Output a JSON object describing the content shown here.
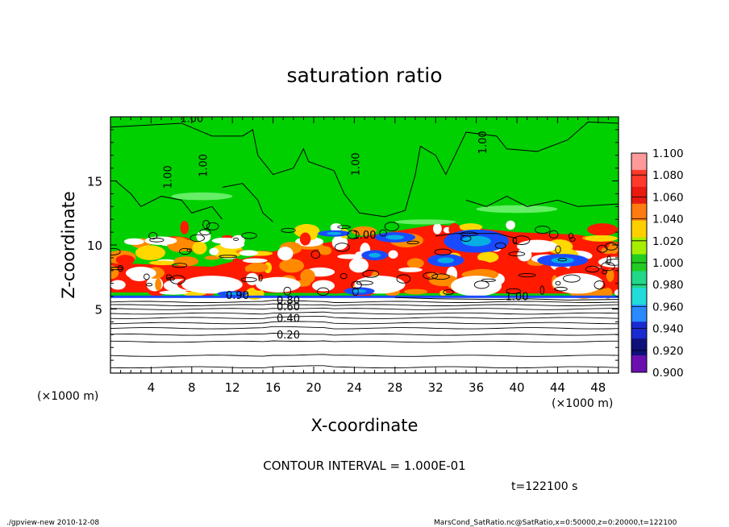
{
  "chart_data": {
    "type": "heatmap",
    "title": "saturation ratio",
    "xlabel": "X-coordinate",
    "ylabel": "Z-coordinate",
    "x_unit": "(×1000 m)",
    "y_unit": "(×1000 m)",
    "xlim": [
      0,
      50
    ],
    "ylim": [
      0,
      20
    ],
    "x_ticks": [
      4,
      8,
      12,
      16,
      20,
      24,
      28,
      32,
      36,
      40,
      44,
      48
    ],
    "y_ticks": [
      5,
      10,
      15
    ],
    "contour_interval": "CONTOUR INTERVAL = 1.000E-01",
    "time_label": "t=122100 s",
    "contour_labels": [
      {
        "text": "1.00",
        "x": 8,
        "z": 19.6
      },
      {
        "text": "1.00",
        "x": 6,
        "z": 15.3
      },
      {
        "text": "1.00",
        "x": 9.5,
        "z": 16.2
      },
      {
        "text": "1.00",
        "x": 24.5,
        "z": 16.3
      },
      {
        "text": "1.00",
        "x": 37,
        "z": 18
      },
      {
        "text": "1.00",
        "x": 25,
        "z": 10.5
      },
      {
        "text": "1.00",
        "x": 40,
        "z": 5.7
      },
      {
        "text": "0.90",
        "x": 12.5,
        "z": 5.8
      },
      {
        "text": "0.80",
        "x": 17.5,
        "z": 5.4
      },
      {
        "text": "0.60",
        "x": 17.5,
        "z": 4.9
      },
      {
        "text": "0.40",
        "x": 17.5,
        "z": 4.0
      },
      {
        "text": "0.20",
        "x": 17.5,
        "z": 2.7
      }
    ],
    "colorbar": {
      "min": 0.9,
      "max": 1.1,
      "tick_labels": [
        "1.100",
        "1.080",
        "1.060",
        "1.040",
        "1.020",
        "1.000",
        "0.980",
        "0.960",
        "0.940",
        "0.920",
        "0.900"
      ],
      "colors": [
        "#ff9a9a",
        "#ff3a2a",
        "#e81a10",
        "#ff7a10",
        "#ffd000",
        "#a6ee00",
        "#22cc22",
        "#22d888",
        "#22dcdc",
        "#2a8aff",
        "#1a2ad0",
        "#10107a",
        "#6a10b0"
      ]
    },
    "grid": false
  },
  "footer": {
    "left": "./gpview-new   2010-12-08",
    "right": "MarsCond_SatRatio.nc@SatRatio,x=0:50000,z=0:20000,t=122100"
  },
  "colors": {
    "green": "#00d000",
    "white": "#ffffff",
    "red": "#ff1a00",
    "orange": "#ff8a00",
    "yellow": "#ffd800",
    "blue": "#1a4aff",
    "cyan": "#00d8d8"
  }
}
